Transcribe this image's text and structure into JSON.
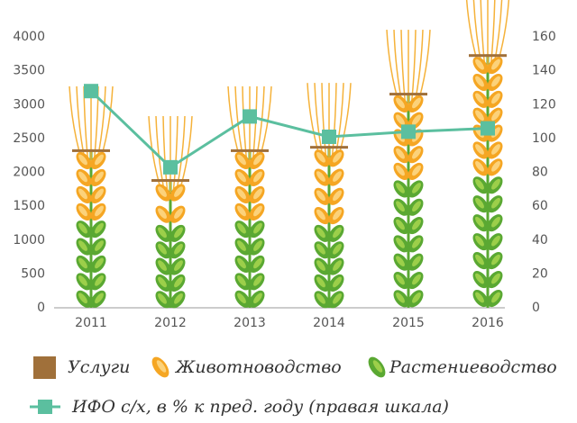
{
  "chart_data": {
    "type": "bar",
    "stacked": true,
    "categories": [
      "2011",
      "2012",
      "2013",
      "2014",
      "2015",
      "2016"
    ],
    "series": [
      {
        "name": "Услуги",
        "color": "#a0703a",
        "values": [
          40,
          40,
          40,
          40,
          40,
          40
        ]
      },
      {
        "name": "Животноводство",
        "color": "#f5a623",
        "values": [
          1010,
          640,
          1010,
          1130,
          1245,
          1755
        ]
      },
      {
        "name": "Растениеводство",
        "color": "#5aa832",
        "values": [
          1290,
          1220,
          1290,
          1220,
          1890,
          1950
        ]
      },
      {
        "name": "ИФО с/х, в % к пред. году (правая шкала)",
        "color": "#5bbf9f",
        "type": "line",
        "axis": "y2",
        "values": [
          128,
          83,
          113,
          101,
          104,
          106
        ]
      }
    ],
    "ylim": [
      0,
      4000
    ],
    "yticks": [
      0,
      500,
      1000,
      1500,
      2000,
      2500,
      3000,
      3500,
      4000
    ],
    "y2lim": [
      0,
      160
    ],
    "y2ticks": [
      0,
      20,
      40,
      60,
      80,
      100,
      120,
      140,
      160
    ]
  }
}
